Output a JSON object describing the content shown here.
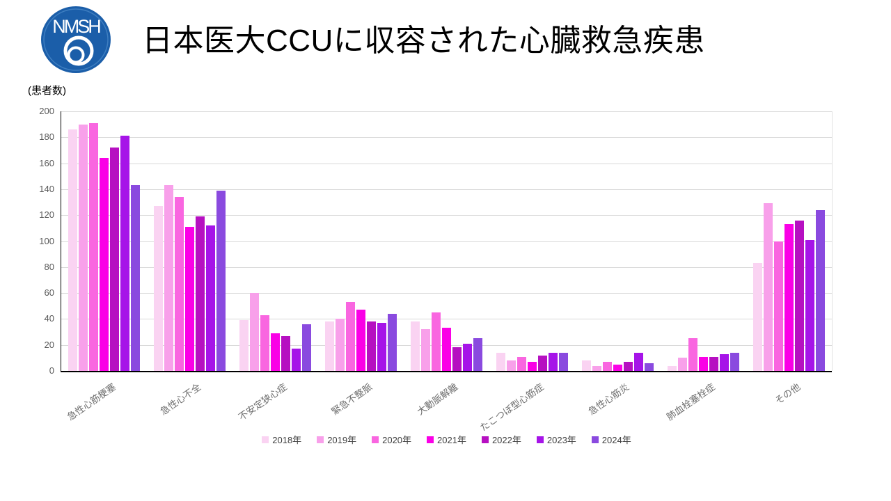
{
  "page": {
    "title": "日本医大CCUに収容された心臓救急疾患",
    "y_unit_label": "(患者数)"
  },
  "logo": {
    "text": "NMSH",
    "bg_color": "#1B5EA9"
  },
  "chart_data": {
    "type": "bar",
    "title": "日本医大CCUに収容された心臓救急疾患",
    "xlabel": "",
    "ylabel": "(患者数)",
    "ylim": [
      0,
      200
    ],
    "ytick_step": 20,
    "grid": true,
    "legend_position": "bottom",
    "categories": [
      "急性心筋梗塞",
      "急性心不全",
      "不安定狭心症",
      "緊急不整脈",
      "大動脈解離",
      "たこつぼ型心筋症",
      "急性心筋炎",
      "肺血栓塞栓症",
      "その他"
    ],
    "series": [
      {
        "name": "2018年",
        "color": "#FAD3F2",
        "values": [
          186,
          127,
          39,
          38,
          38,
          14,
          8,
          4,
          83
        ]
      },
      {
        "name": "2019年",
        "color": "#F8A0EA",
        "values": [
          190,
          143,
          60,
          40,
          32,
          8,
          4,
          10,
          129
        ]
      },
      {
        "name": "2020年",
        "color": "#F966E0",
        "values": [
          191,
          134,
          43,
          53,
          45,
          11,
          7,
          25,
          100
        ]
      },
      {
        "name": "2021年",
        "color": "#FA00E6",
        "values": [
          164,
          111,
          29,
          47,
          33,
          7,
          5,
          11,
          113
        ]
      },
      {
        "name": "2022年",
        "color": "#B610C1",
        "values": [
          172,
          119,
          27,
          38,
          18,
          12,
          7,
          11,
          116
        ]
      },
      {
        "name": "2023年",
        "color": "#A614E8",
        "values": [
          181,
          112,
          17,
          37,
          21,
          14,
          14,
          13,
          101
        ]
      },
      {
        "name": "2024年",
        "color": "#8A4ADF",
        "values": [
          143,
          139,
          36,
          44,
          25,
          14,
          6,
          14,
          124
        ]
      }
    ]
  }
}
